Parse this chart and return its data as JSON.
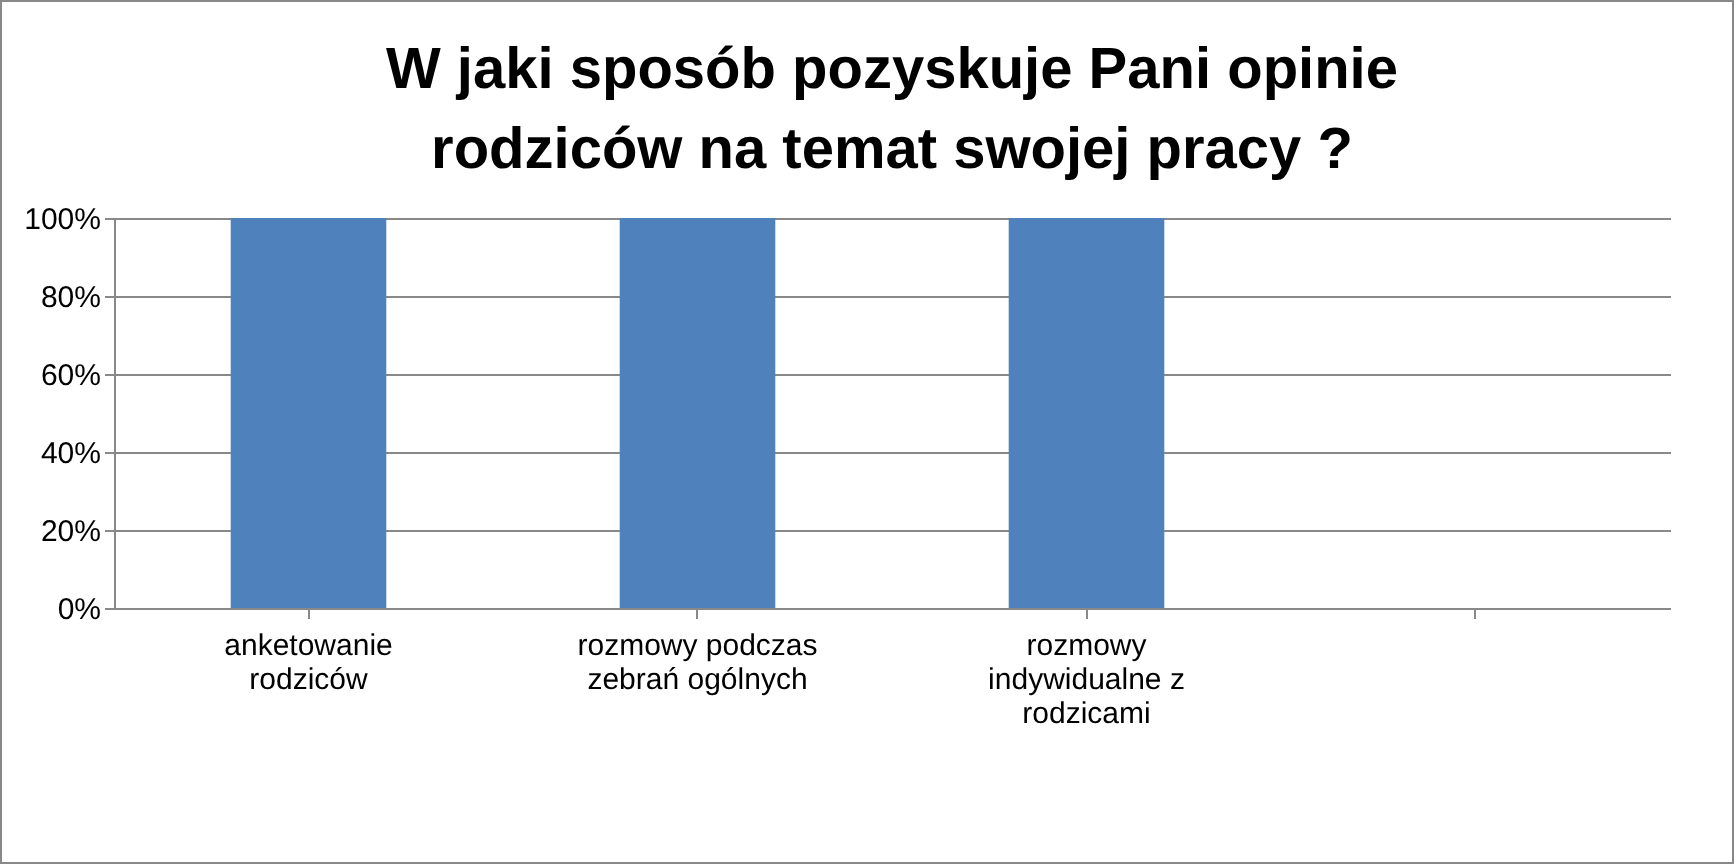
{
  "chart_data": {
    "type": "bar",
    "title": "W jaki sposób pozyskuje Pani opinie rodziców na temat swojej pracy ?",
    "categories": [
      "anketowanie rodziców",
      "rozmowy podczas zebrań ogólnych",
      "rozmowy indywidualne z rodzicami",
      null
    ],
    "values": [
      100,
      100,
      100,
      null
    ],
    "color": "#4f81bd",
    "ylim": [
      0,
      100
    ],
    "yticks": [
      {
        "value": 0,
        "label": "0%"
      },
      {
        "value": 20,
        "label": "20%"
      },
      {
        "value": 40,
        "label": "40%"
      },
      {
        "value": 60,
        "label": "60%"
      },
      {
        "value": 80,
        "label": "80%"
      },
      {
        "value": 100,
        "label": "100%"
      }
    ],
    "grid": "y"
  }
}
